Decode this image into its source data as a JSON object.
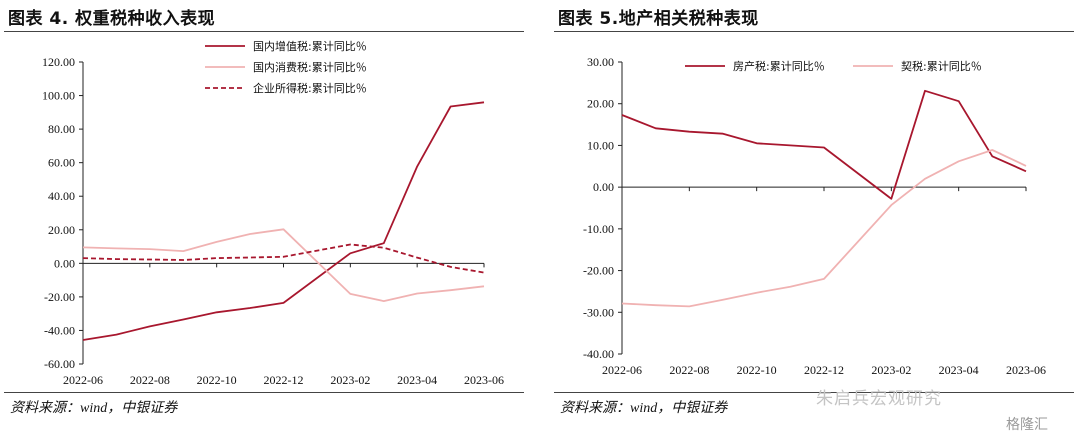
{
  "charts": [
    {
      "title": "图表 4. 权重税种收入表现",
      "source": "资料来源：wind，中银证券"
    },
    {
      "title": "图表 5.地产相关税种表现",
      "source": "资料来源：wind，中银证券"
    }
  ],
  "watermark": {
    "text": "朱启兵宏观研究",
    "logo": "格隆汇"
  },
  "chart_data": [
    {
      "type": "line",
      "ylim": [
        -60,
        120
      ],
      "yticks": [
        "120.00",
        "100.00",
        "80.00",
        "60.00",
        "40.00",
        "20.00",
        "0.00",
        "-20.00",
        "-40.00",
        "-60.00"
      ],
      "xticks": [
        "2022-06",
        "2022-08",
        "2022-10",
        "2022-12",
        "2023-02",
        "2023-04",
        "2023-06"
      ],
      "x": [
        "2022-06",
        "2022-07",
        "2022-08",
        "2022-09",
        "2022-10",
        "2022-11",
        "2022-12",
        "2023-02",
        "2023-03",
        "2023-04",
        "2023-05",
        "2023-06"
      ],
      "legend_position": "top-center",
      "series": [
        {
          "name": "国内增值税:累计同比％",
          "color": "#a8172e",
          "dash": "solid",
          "values": [
            -45.7,
            -42.5,
            -37.6,
            -33.5,
            -29.2,
            -26.6,
            -23.6,
            6.0,
            12.0,
            57.8,
            93.5,
            96.0
          ]
        },
        {
          "name": "国内消费税:累计同比％",
          "color": "#f0b2b2",
          "dash": "solid",
          "values": [
            9.5,
            8.9,
            8.5,
            7.3,
            12.8,
            17.5,
            20.3,
            -18.2,
            -22.5,
            -18.0,
            -16.0,
            -13.7
          ]
        },
        {
          "name": "企业所得税:累计同比％",
          "color": "#a8172e",
          "dash": "dashed",
          "values": [
            3.1,
            2.5,
            2.3,
            2.0,
            3.1,
            3.5,
            3.9,
            11.2,
            9.3,
            3.4,
            -2.1,
            -5.5
          ]
        }
      ]
    },
    {
      "type": "line",
      "ylim": [
        -40,
        30
      ],
      "yticks": [
        "30.00",
        "20.00",
        "10.00",
        "0.00",
        "-10.00",
        "-20.00",
        "-30.00",
        "-40.00"
      ],
      "xticks": [
        "2022-06",
        "2022-08",
        "2022-10",
        "2022-12",
        "2023-02",
        "2023-04",
        "2023-06"
      ],
      "x": [
        "2022-06",
        "2022-07",
        "2022-08",
        "2022-09",
        "2022-10",
        "2022-11",
        "2022-12",
        "2023-02",
        "2023-03",
        "2023-04",
        "2023-05",
        "2023-06"
      ],
      "legend_position": "top-center",
      "series": [
        {
          "name": "房产税:累计同比％",
          "color": "#a8172e",
          "dash": "solid",
          "values": [
            17.3,
            14.1,
            13.3,
            12.8,
            10.5,
            10.0,
            9.5,
            -2.8,
            23.1,
            20.6,
            7.4,
            3.8
          ]
        },
        {
          "name": "契税:累计同比％",
          "color": "#f0b2b2",
          "dash": "solid",
          "values": [
            -27.9,
            -28.3,
            -28.6,
            -27.0,
            -25.3,
            -23.9,
            -22.0,
            -4.3,
            2.0,
            6.2,
            8.9,
            5.1
          ]
        }
      ]
    }
  ]
}
